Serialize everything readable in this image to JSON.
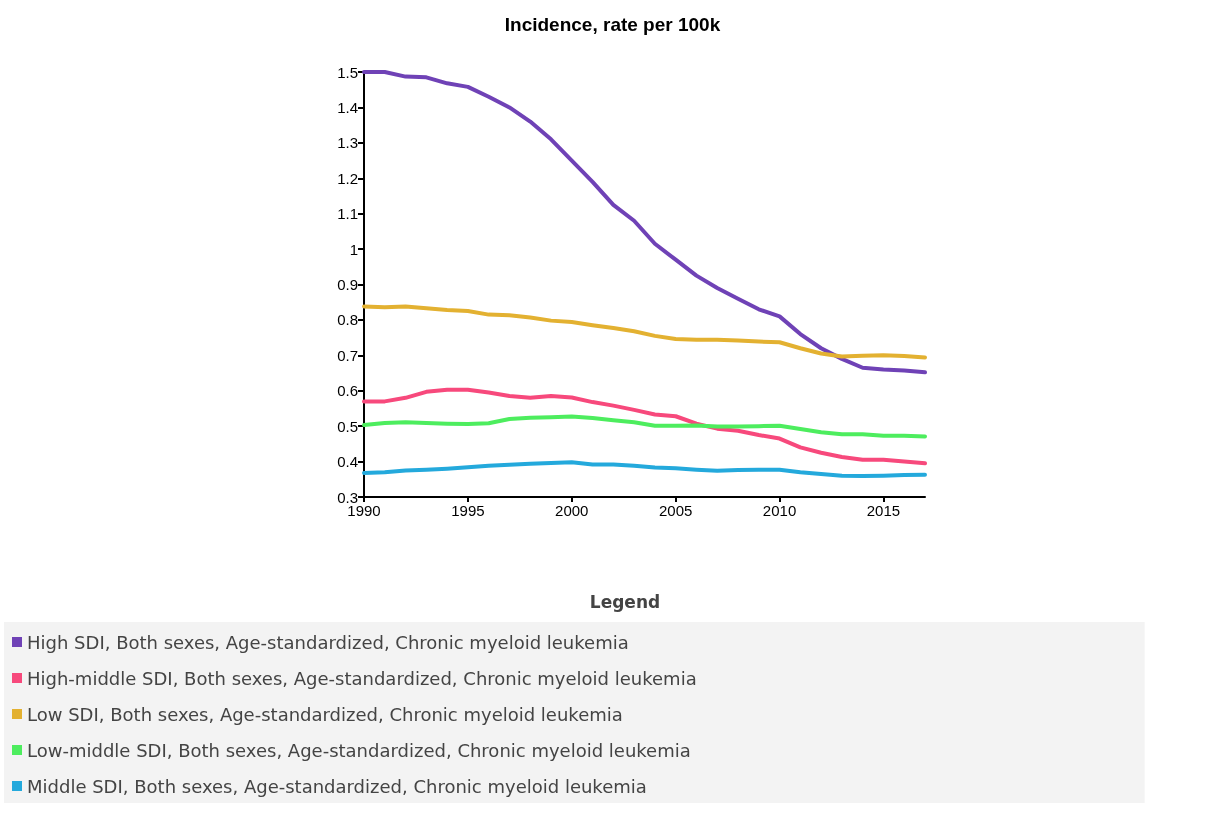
{
  "chart_data": {
    "type": "line",
    "title": "Incidence, rate per 100k",
    "legend_title": "Legend",
    "legend": "bottom",
    "grid": false,
    "marker": "none",
    "line_style": "solid",
    "x": [
      1990,
      1991,
      1992,
      1993,
      1994,
      1995,
      1996,
      1997,
      1998,
      1999,
      2000,
      2001,
      2002,
      2003,
      2004,
      2005,
      2006,
      2007,
      2008,
      2009,
      2010,
      2011,
      2012,
      2013,
      2014,
      2015,
      2016,
      2017
    ],
    "xlim": [
      1990,
      2017
    ],
    "xticks": [
      1990,
      1995,
      2000,
      2005,
      2010,
      2015
    ],
    "ylim": [
      0.3,
      1.5
    ],
    "yticks": [
      0.3,
      0.4,
      0.5,
      0.6,
      0.7,
      0.8,
      0.9,
      1,
      1.1,
      1.2,
      1.3,
      1.4,
      1.5
    ],
    "series": [
      {
        "name": "High SDI, Both sexes, Age-standardized, Chronic myeloid leukemia",
        "color": "#6f42b6",
        "values": [
          1.5,
          1.5,
          1.487,
          1.485,
          1.468,
          1.458,
          1.43,
          1.4,
          1.36,
          1.31,
          1.25,
          1.19,
          1.125,
          1.08,
          1.015,
          0.97,
          0.925,
          0.89,
          0.86,
          0.83,
          0.81,
          0.76,
          0.72,
          0.69,
          0.665,
          0.66,
          0.657,
          0.652
        ]
      },
      {
        "name": "High-middle SDI, Both sexes, Age-standardized, Chronic myeloid leukemia",
        "color": "#f7497c",
        "values": [
          0.57,
          0.57,
          0.58,
          0.597,
          0.603,
          0.603,
          0.595,
          0.585,
          0.58,
          0.585,
          0.581,
          0.568,
          0.558,
          0.546,
          0.533,
          0.528,
          0.507,
          0.493,
          0.487,
          0.475,
          0.465,
          0.44,
          0.425,
          0.413,
          0.405,
          0.405,
          0.4,
          0.395
        ]
      },
      {
        "name": "Low SDI, Both sexes, Age-standardized, Chronic myeloid leukemia",
        "color": "#e3b131",
        "values": [
          0.838,
          0.836,
          0.838,
          0.833,
          0.828,
          0.825,
          0.815,
          0.813,
          0.807,
          0.798,
          0.794,
          0.785,
          0.777,
          0.768,
          0.755,
          0.746,
          0.744,
          0.744,
          0.742,
          0.739,
          0.737,
          0.72,
          0.705,
          0.697,
          0.699,
          0.7,
          0.698,
          0.694
        ]
      },
      {
        "name": "Low-middle SDI, Both sexes, Age-standardized, Chronic myeloid leukemia",
        "color": "#4ded5e",
        "values": [
          0.503,
          0.509,
          0.511,
          0.509,
          0.507,
          0.506,
          0.508,
          0.52,
          0.524,
          0.525,
          0.527,
          0.523,
          0.517,
          0.511,
          0.501,
          0.501,
          0.502,
          0.499,
          0.499,
          0.5,
          0.501,
          0.492,
          0.483,
          0.477,
          0.477,
          0.473,
          0.473,
          0.471
        ]
      },
      {
        "name": "Middle SDI, Both sexes, Age-standardized, Chronic myeloid leukemia",
        "color": "#24a9dc",
        "values": [
          0.368,
          0.37,
          0.375,
          0.377,
          0.38,
          0.384,
          0.388,
          0.391,
          0.394,
          0.396,
          0.398,
          0.392,
          0.392,
          0.388,
          0.383,
          0.381,
          0.377,
          0.374,
          0.376,
          0.377,
          0.377,
          0.37,
          0.365,
          0.36,
          0.359,
          0.36,
          0.362,
          0.363
        ]
      }
    ]
  }
}
